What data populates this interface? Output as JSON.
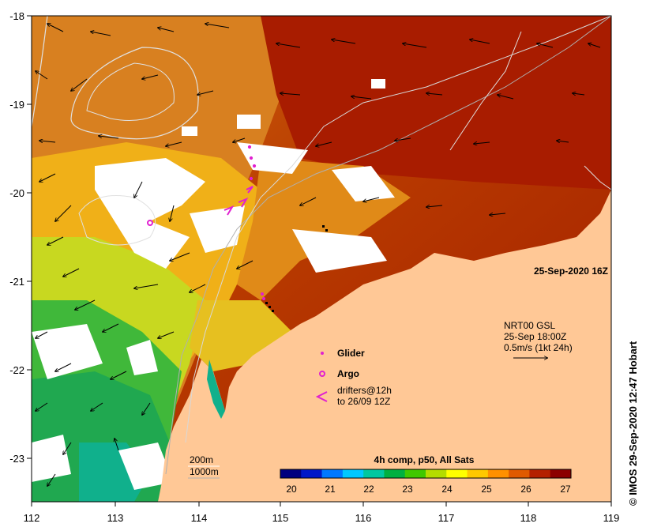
{
  "map": {
    "date_label": "25-Sep-2020 16Z",
    "credit": "© IMOS 29-Sep-2020 12:47 Hobart",
    "x_ticks": [
      "112",
      "113",
      "114",
      "115",
      "116",
      "117",
      "118",
      "119"
    ],
    "y_ticks": [
      "-18",
      "-19",
      "-20",
      "-21",
      "-22",
      "-23"
    ]
  },
  "current_info": {
    "line1": "NRT00 GSL",
    "line2": "25-Sep 18:00Z",
    "line3": "0.5m/s (1kt 24h)"
  },
  "legend": {
    "glider": "Glider",
    "argo": "Argo",
    "drifters_line1": "drifters@12h",
    "drifters_line2": "to 26/09 12Z"
  },
  "depth_labels": {
    "d200": "200m",
    "d1000": "1000m"
  },
  "colorbar": {
    "title": "4h comp, p50, All Sats",
    "ticks": [
      "20",
      "21",
      "22",
      "23",
      "24",
      "25",
      "26",
      "27"
    ],
    "colors": [
      "#00007f",
      "#0018c8",
      "#0078ff",
      "#00c8ff",
      "#00c8a0",
      "#00b040",
      "#40c800",
      "#b4dc00",
      "#ffff00",
      "#ffc800",
      "#ff9000",
      "#e05a00",
      "#b42000",
      "#8c0000"
    ]
  }
}
